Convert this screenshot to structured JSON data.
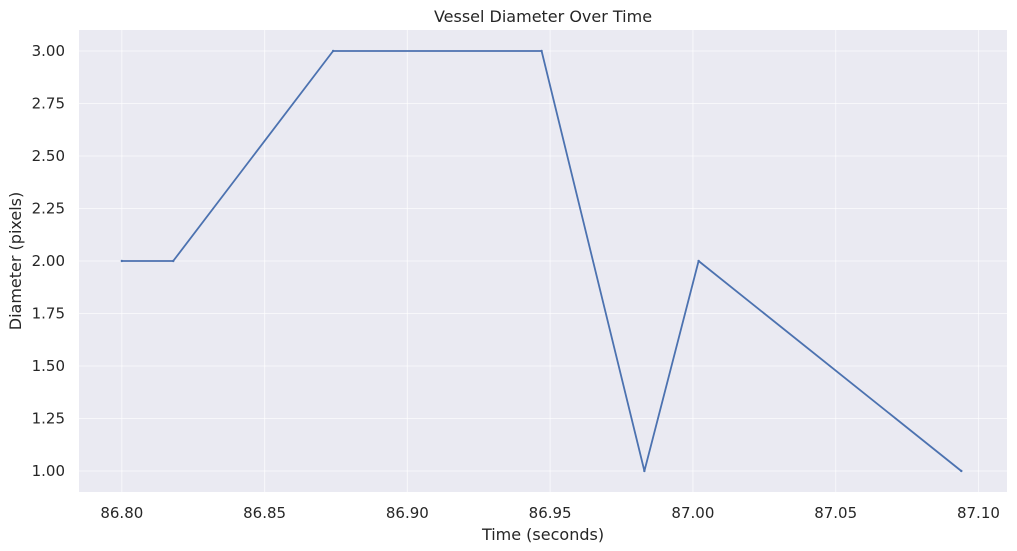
{
  "chart_data": {
    "type": "line",
    "title": "Vessel Diameter Over Time",
    "xlabel": "Time (seconds)",
    "ylabel": "Diameter (pixels)",
    "xlim": [
      86.785,
      87.11
    ],
    "ylim": [
      0.9,
      3.1
    ],
    "xticks": [
      86.8,
      86.85,
      86.9,
      86.95,
      87.0,
      87.05,
      87.1
    ],
    "xtick_labels": [
      "86.80",
      "86.85",
      "86.90",
      "86.95",
      "87.00",
      "87.05",
      "87.10"
    ],
    "yticks": [
      1.0,
      1.25,
      1.5,
      1.75,
      2.0,
      2.25,
      2.5,
      2.75,
      3.0
    ],
    "ytick_labels": [
      "1.00",
      "1.25",
      "1.50",
      "1.75",
      "2.00",
      "2.25",
      "2.50",
      "2.75",
      "3.00"
    ],
    "grid": true,
    "series": [
      {
        "color": "#4c72b0",
        "x": [
          86.8,
          86.818,
          86.874,
          86.947,
          86.983,
          87.002,
          87.094
        ],
        "y": [
          2.0,
          2.0,
          3.0,
          3.0,
          1.0,
          2.0,
          1.0
        ]
      }
    ]
  },
  "colors": {
    "plot_background": "#eaeaf2",
    "line": "#4c72b0"
  }
}
